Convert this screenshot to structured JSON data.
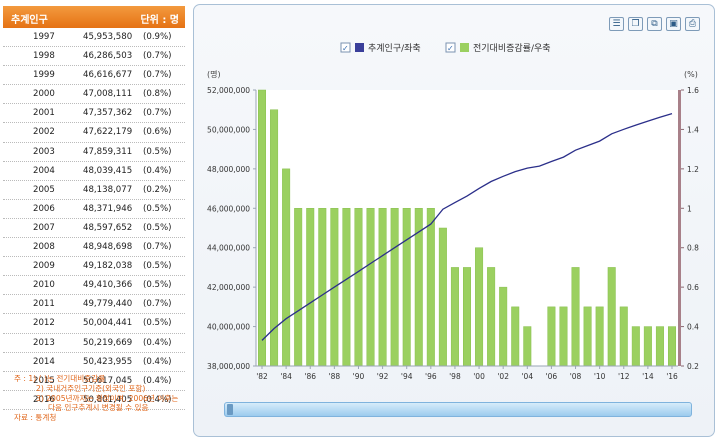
{
  "table": {
    "header_title": "추계인구",
    "header_unit": "단위 : 명",
    "rows": [
      {
        "year": "1997",
        "pop": "45,953,580",
        "rate": "(0.9%)"
      },
      {
        "year": "1998",
        "pop": "46,286,503",
        "rate": "(0.7%)"
      },
      {
        "year": "1999",
        "pop": "46,616,677",
        "rate": "(0.7%)"
      },
      {
        "year": "2000",
        "pop": "47,008,111",
        "rate": "(0.8%)"
      },
      {
        "year": "2001",
        "pop": "47,357,362",
        "rate": "(0.7%)"
      },
      {
        "year": "2002",
        "pop": "47,622,179",
        "rate": "(0.6%)"
      },
      {
        "year": "2003",
        "pop": "47,859,311",
        "rate": "(0.5%)"
      },
      {
        "year": "2004",
        "pop": "48,039,415",
        "rate": "(0.4%)"
      },
      {
        "year": "2005",
        "pop": "48,138,077",
        "rate": "(0.2%)"
      },
      {
        "year": "2006",
        "pop": "48,371,946",
        "rate": "(0.5%)"
      },
      {
        "year": "2007",
        "pop": "48,597,652",
        "rate": "(0.5%)"
      },
      {
        "year": "2008",
        "pop": "48,948,698",
        "rate": "(0.7%)"
      },
      {
        "year": "2009",
        "pop": "49,182,038",
        "rate": "(0.5%)"
      },
      {
        "year": "2010",
        "pop": "49,410,366",
        "rate": "(0.5%)"
      },
      {
        "year": "2011",
        "pop": "49,779,440",
        "rate": "(0.7%)"
      },
      {
        "year": "2012",
        "pop": "50,004,441",
        "rate": "(0.5%)"
      },
      {
        "year": "2013",
        "pop": "50,219,669",
        "rate": "(0.4%)"
      },
      {
        "year": "2014",
        "pop": "50,423,955",
        "rate": "(0.4%)"
      },
      {
        "year": "2015",
        "pop": "50,617,045",
        "rate": "(0.4%)"
      },
      {
        "year": "2016",
        "pop": "50,801,405",
        "rate": "(0.4%)"
      }
    ]
  },
  "notes": {
    "line1": "주 : 1) (       )는 전기대비증감률",
    "line2": "2) 국내거주인구기준(외국인 포함)",
    "line3": "3) 2005년까지는 확정이며, 2006년 이후는",
    "line4": "다음 인구추계시 변경될 수 있음",
    "line5": "자료 : 통계청"
  },
  "toolbar": {
    "icons": [
      "list-icon",
      "copy-icon",
      "copy-data-icon",
      "save-icon",
      "print-icon"
    ]
  },
  "chart_data": {
    "type": "bar+line",
    "legend": [
      {
        "label": "추계인구/좌축",
        "color": "#3a3f9a"
      },
      {
        "label": "전기대비증감률/우축",
        "color": "#9bd060"
      }
    ],
    "legend_placement": "top-center",
    "y_left_unit": "(명)",
    "y_right_unit": "(%)",
    "y_left_range": [
      38000000,
      52000000
    ],
    "y_left_ticks": [
      "38,000,000",
      "40,000,000",
      "42,000,000",
      "44,000,000",
      "46,000,000",
      "48,000,000",
      "50,000,000",
      "52,000,000"
    ],
    "y_left_tick_values": [
      38000000,
      40000000,
      42000000,
      44000000,
      46000000,
      48000000,
      50000000,
      52000000
    ],
    "y_right_range": [
      0.2,
      1.6
    ],
    "y_right_ticks": [
      "0.2",
      "0.4",
      "0.6",
      "0.8",
      "1",
      "1.2",
      "1.4",
      "1.6"
    ],
    "y_right_tick_values": [
      0.2,
      0.4,
      0.6,
      0.8,
      1,
      1.2,
      1.4,
      1.6
    ],
    "x_tick_labels": [
      "'82",
      "'84",
      "'86",
      "'88",
      "'90",
      "'92",
      "'94",
      "'96",
      "'98",
      "'00",
      "'02",
      "'04",
      "'06",
      "'08",
      "'10",
      "'12",
      "'14",
      "'16"
    ],
    "x_tick_years": [
      1982,
      1984,
      1986,
      1988,
      1990,
      1992,
      1994,
      1996,
      1998,
      2000,
      2002,
      2004,
      2006,
      2008,
      2010,
      2012,
      2014,
      2016
    ],
    "x_range": [
      1982,
      2016
    ],
    "years": [
      1982,
      1983,
      1984,
      1985,
      1986,
      1987,
      1988,
      1989,
      1990,
      1991,
      1992,
      1993,
      1994,
      1995,
      1996,
      1997,
      1998,
      1999,
      2000,
      2001,
      2002,
      2003,
      2004,
      2005,
      2006,
      2007,
      2008,
      2009,
      2010,
      2011,
      2012,
      2013,
      2014,
      2015,
      2016
    ],
    "series": [
      {
        "name": "추계인구",
        "axis": "left",
        "kind": "line",
        "color": "#2b2f8a",
        "values": [
          39300000,
          39900000,
          40400000,
          40800000,
          41200000,
          41600000,
          42000000,
          42400000,
          42800000,
          43200000,
          43600000,
          44000000,
          44400000,
          44800000,
          45200000,
          45953580,
          46286503,
          46616677,
          47008111,
          47357362,
          47622179,
          47859311,
          48039415,
          48138077,
          48371946,
          48597652,
          48948698,
          49182038,
          49410366,
          49779440,
          50004441,
          50219669,
          50423955,
          50617045,
          50801405
        ]
      },
      {
        "name": "전기대비증감률",
        "axis": "right",
        "kind": "bar",
        "color": "#9bd060",
        "values": [
          1.6,
          1.5,
          1.2,
          1.0,
          1.0,
          1.0,
          1.0,
          1.0,
          1.0,
          1.0,
          1.0,
          1.0,
          1.0,
          1.0,
          1.0,
          0.9,
          0.7,
          0.7,
          0.8,
          0.7,
          0.6,
          0.5,
          0.4,
          0.2,
          0.5,
          0.5,
          0.7,
          0.5,
          0.5,
          0.7,
          0.5,
          0.4,
          0.4,
          0.4,
          0.4
        ]
      }
    ]
  }
}
